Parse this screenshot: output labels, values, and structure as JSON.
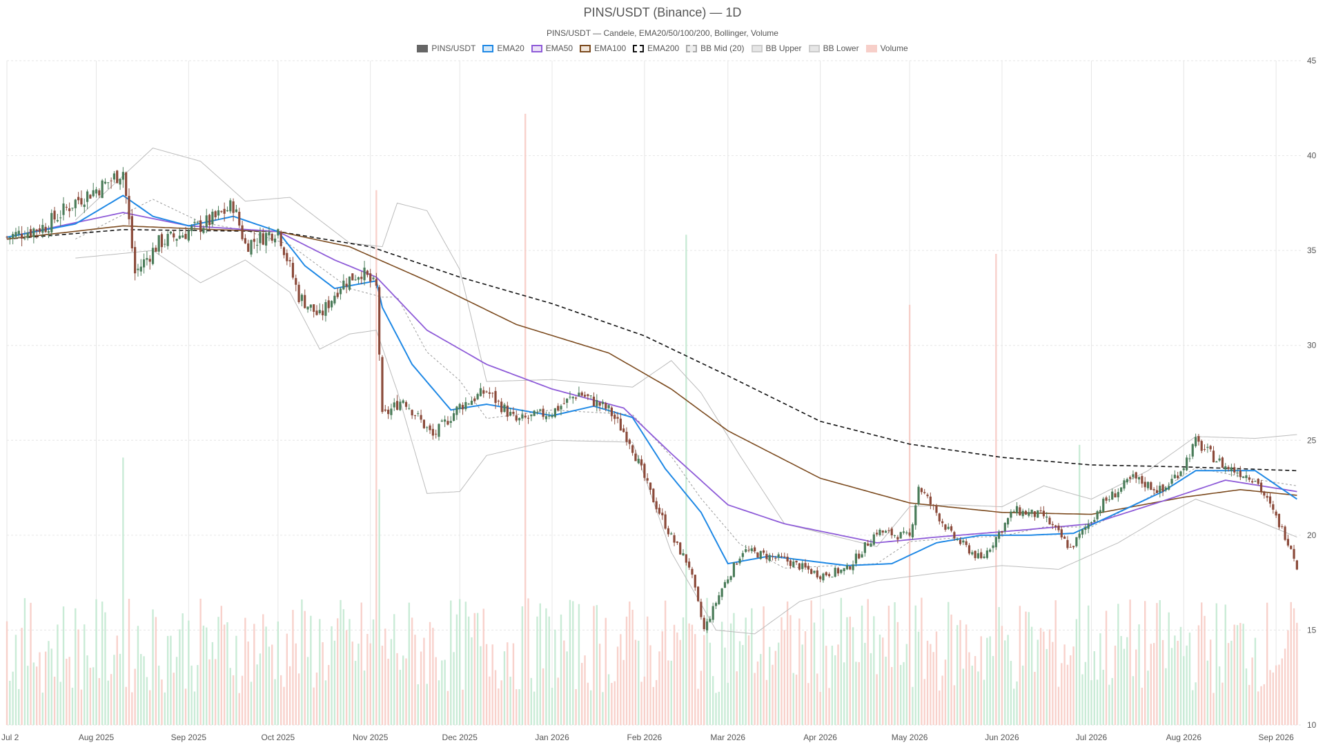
{
  "chart_data": {
    "type": "candlestick",
    "title": "PINS/USDT (Binance) — 1D",
    "subtitle": "PINS/USDT — Candele, EMA20/50/100/200, Bollinger, Volume",
    "x_range": [
      "2025-07-02",
      "2026-09-10"
    ],
    "y_range": [
      10,
      45
    ],
    "y_ticks": [
      10,
      15,
      20,
      25,
      30,
      35,
      40,
      45
    ],
    "x_ticks": [
      {
        "date": "2025-07-02",
        "label": "Jul 2"
      },
      {
        "date": "2025-08-01",
        "label": "Aug 2025"
      },
      {
        "date": "2025-09-01",
        "label": "Sep 2025"
      },
      {
        "date": "2025-10-01",
        "label": "Oct 2025"
      },
      {
        "date": "2025-11-01",
        "label": "Nov 2025"
      },
      {
        "date": "2025-12-01",
        "label": "Dec 2025"
      },
      {
        "date": "2026-01-01",
        "label": "Jan 2026"
      },
      {
        "date": "2026-02-01",
        "label": "Feb 2026"
      },
      {
        "date": "2026-03-01",
        "label": "Mar 2026"
      },
      {
        "date": "2026-04-01",
        "label": "Apr 2026"
      },
      {
        "date": "2026-05-01",
        "label": "May 2026"
      },
      {
        "date": "2026-06-01",
        "label": "Jun 2026"
      },
      {
        "date": "2026-07-01",
        "label": "Jul 2026"
      },
      {
        "date": "2026-08-01",
        "label": "Aug 2026"
      },
      {
        "date": "2026-09-01",
        "label": "Sep 2026"
      }
    ],
    "grid": true,
    "legend_position": "top-center",
    "legend": [
      {
        "name": "PINS/USDT",
        "fill": "#666666",
        "stroke": "#666666",
        "dashed": false
      },
      {
        "name": "EMA20",
        "fill": "#d6e9f8",
        "stroke": "#1e88e5",
        "dashed": false
      },
      {
        "name": "EMA50",
        "fill": "#ece1f7",
        "stroke": "#8e5bd8",
        "dashed": false
      },
      {
        "name": "EMA100",
        "fill": "#f2e6da",
        "stroke": "#7b4a1e",
        "dashed": false
      },
      {
        "name": "EMA200",
        "fill": "#ffffff",
        "stroke": "#111111",
        "dashed": true
      },
      {
        "name": "BB Mid (20)",
        "fill": "#eeeeee",
        "stroke": "#aaaaaa",
        "dashed": true
      },
      {
        "name": "BB Upper",
        "fill": "#e6e6e6",
        "stroke": "#cccccc",
        "dashed": false
      },
      {
        "name": "BB Lower",
        "fill": "#e6e6e6",
        "stroke": "#cccccc",
        "dashed": false
      },
      {
        "name": "Volume",
        "fill": "#f7cfc9",
        "stroke": "#f7cfc9",
        "dashed": false
      }
    ],
    "colors": {
      "up": "#4a7c59",
      "down": "#8b4a3a",
      "vol_up": "#bfe8cf",
      "vol_down": "#f7c9c2",
      "grid": "#e6e6e6"
    },
    "price_keypoints": [
      [
        "2025-07-02",
        35.7
      ],
      [
        "2025-07-15",
        36.3
      ],
      [
        "2025-07-25",
        37.6
      ],
      [
        "2025-08-04",
        38.5
      ],
      [
        "2025-08-10",
        39.2
      ],
      [
        "2025-08-14",
        33.8
      ],
      [
        "2025-08-22",
        35.4
      ],
      [
        "2025-09-01",
        36.0
      ],
      [
        "2025-09-10",
        36.7
      ],
      [
        "2025-09-16",
        37.4
      ],
      [
        "2025-09-20",
        35.3
      ],
      [
        "2025-10-01",
        36.1
      ],
      [
        "2025-10-08",
        32.6
      ],
      [
        "2025-10-15",
        31.5
      ],
      [
        "2025-10-22",
        33.2
      ],
      [
        "2025-10-29",
        33.9
      ],
      [
        "2025-11-03",
        33.0
      ],
      [
        "2025-11-05",
        26.2
      ],
      [
        "2025-11-12",
        27.2
      ],
      [
        "2025-11-22",
        25.2
      ],
      [
        "2025-12-01",
        26.8
      ],
      [
        "2025-12-10",
        27.6
      ],
      [
        "2025-12-20",
        26.0
      ],
      [
        "2026-01-01",
        26.5
      ],
      [
        "2026-01-10",
        27.5
      ],
      [
        "2026-01-20",
        26.6
      ],
      [
        "2026-01-27",
        25.0
      ],
      [
        "2026-02-03",
        22.2
      ],
      [
        "2026-02-10",
        19.9
      ],
      [
        "2026-02-16",
        18.4
      ],
      [
        "2026-02-21",
        15.0
      ],
      [
        "2026-02-27",
        17.2
      ],
      [
        "2026-03-06",
        19.2
      ],
      [
        "2026-03-20",
        18.7
      ],
      [
        "2026-04-01",
        17.9
      ],
      [
        "2026-04-10",
        18.2
      ],
      [
        "2026-04-20",
        20.2
      ],
      [
        "2026-05-01",
        19.9
      ],
      [
        "2026-05-04",
        22.6
      ],
      [
        "2026-05-15",
        20.0
      ],
      [
        "2026-05-25",
        18.7
      ],
      [
        "2026-06-05",
        21.3
      ],
      [
        "2026-06-15",
        21.0
      ],
      [
        "2026-06-24",
        19.3
      ],
      [
        "2026-07-05",
        21.7
      ],
      [
        "2026-07-15",
        23.0
      ],
      [
        "2026-07-25",
        22.3
      ],
      [
        "2026-08-01",
        23.7
      ],
      [
        "2026-08-05",
        24.9
      ],
      [
        "2026-08-15",
        23.6
      ],
      [
        "2026-08-25",
        23.0
      ],
      [
        "2026-09-02",
        20.6
      ],
      [
        "2026-09-06",
        19.4
      ],
      [
        "2026-09-08",
        18.4
      ]
    ],
    "ema20": [
      [
        "2025-07-02",
        35.7
      ],
      [
        "2025-07-25",
        36.4
      ],
      [
        "2025-08-10",
        37.9
      ],
      [
        "2025-08-20",
        36.8
      ],
      [
        "2025-09-01",
        36.3
      ],
      [
        "2025-09-16",
        36.8
      ],
      [
        "2025-10-01",
        36.0
      ],
      [
        "2025-10-10",
        34.2
      ],
      [
        "2025-10-20",
        33.0
      ],
      [
        "2025-11-03",
        33.4
      ],
      [
        "2025-11-05",
        32.0
      ],
      [
        "2025-11-15",
        29.0
      ],
      [
        "2025-11-28",
        26.6
      ],
      [
        "2025-12-10",
        26.9
      ],
      [
        "2026-01-01",
        26.3
      ],
      [
        "2026-01-15",
        26.8
      ],
      [
        "2026-01-28",
        26.2
      ],
      [
        "2026-02-08",
        23.5
      ],
      [
        "2026-02-20",
        21.2
      ],
      [
        "2026-03-01",
        18.5
      ],
      [
        "2026-03-15",
        18.9
      ],
      [
        "2026-04-10",
        18.4
      ],
      [
        "2026-04-25",
        18.5
      ],
      [
        "2026-05-10",
        19.6
      ],
      [
        "2026-05-25",
        20.0
      ],
      [
        "2026-06-10",
        20.0
      ],
      [
        "2026-06-25",
        20.1
      ],
      [
        "2026-07-10",
        21.2
      ],
      [
        "2026-07-25",
        22.3
      ],
      [
        "2026-08-05",
        23.4
      ],
      [
        "2026-08-25",
        23.4
      ],
      [
        "2026-09-08",
        21.9
      ]
    ],
    "ema50": [
      [
        "2025-07-02",
        35.7
      ],
      [
        "2025-08-10",
        37.0
      ],
      [
        "2025-09-01",
        36.3
      ],
      [
        "2025-10-01",
        36.0
      ],
      [
        "2025-10-20",
        34.5
      ],
      [
        "2025-11-03",
        33.6
      ],
      [
        "2025-11-20",
        30.8
      ],
      [
        "2025-12-10",
        29.0
      ],
      [
        "2026-01-01",
        27.7
      ],
      [
        "2026-01-25",
        26.7
      ],
      [
        "2026-02-10",
        24.3
      ],
      [
        "2026-03-01",
        21.6
      ],
      [
        "2026-03-20",
        20.6
      ],
      [
        "2026-04-20",
        19.6
      ],
      [
        "2026-05-10",
        19.9
      ],
      [
        "2026-06-10",
        20.3
      ],
      [
        "2026-07-01",
        20.6
      ],
      [
        "2026-07-25",
        21.8
      ],
      [
        "2026-08-15",
        22.9
      ],
      [
        "2026-09-08",
        22.3
      ]
    ],
    "ema100": [
      [
        "2025-07-02",
        35.6
      ],
      [
        "2025-08-10",
        36.3
      ],
      [
        "2025-09-10",
        36.1
      ],
      [
        "2025-10-01",
        36.0
      ],
      [
        "2025-10-25",
        35.2
      ],
      [
        "2025-11-20",
        33.4
      ],
      [
        "2025-12-20",
        31.1
      ],
      [
        "2026-01-20",
        29.6
      ],
      [
        "2026-02-10",
        27.7
      ],
      [
        "2026-03-01",
        25.5
      ],
      [
        "2026-04-01",
        23.0
      ],
      [
        "2026-05-01",
        21.7
      ],
      [
        "2026-06-01",
        21.2
      ],
      [
        "2026-07-01",
        21.1
      ],
      [
        "2026-08-01",
        22.0
      ],
      [
        "2026-08-20",
        22.4
      ],
      [
        "2026-09-08",
        22.1
      ]
    ],
    "ema200": [
      [
        "2025-07-02",
        35.6
      ],
      [
        "2025-08-10",
        36.1
      ],
      [
        "2025-10-01",
        36.0
      ],
      [
        "2025-11-01",
        35.2
      ],
      [
        "2025-12-01",
        33.6
      ],
      [
        "2026-01-01",
        32.2
      ],
      [
        "2026-02-01",
        30.5
      ],
      [
        "2026-03-01",
        28.4
      ],
      [
        "2026-04-01",
        26.0
      ],
      [
        "2026-05-01",
        24.8
      ],
      [
        "2026-06-01",
        24.1
      ],
      [
        "2026-07-01",
        23.7
      ],
      [
        "2026-08-01",
        23.6
      ],
      [
        "2026-09-08",
        23.4
      ]
    ],
    "bb_upper": [
      [
        "2025-07-25",
        36.6
      ],
      [
        "2025-08-20",
        40.4
      ],
      [
        "2025-09-05",
        39.7
      ],
      [
        "2025-09-20",
        37.6
      ],
      [
        "2025-10-05",
        37.8
      ],
      [
        "2025-10-25",
        35.4
      ],
      [
        "2025-11-05",
        35.2
      ],
      [
        "2025-11-10",
        37.5
      ],
      [
        "2025-11-20",
        37.1
      ],
      [
        "2025-12-01",
        34.0
      ],
      [
        "2025-12-10",
        28.1
      ],
      [
        "2026-01-01",
        28.2
      ],
      [
        "2026-01-28",
        27.8
      ],
      [
        "2026-02-10",
        29.2
      ],
      [
        "2026-02-20",
        27.5
      ],
      [
        "2026-03-05",
        24.2
      ],
      [
        "2026-03-20",
        20.6
      ],
      [
        "2026-04-20",
        19.4
      ],
      [
        "2026-05-01",
        21.5
      ],
      [
        "2026-05-15",
        21.6
      ],
      [
        "2026-06-01",
        21.5
      ],
      [
        "2026-06-15",
        22.6
      ],
      [
        "2026-07-01",
        21.9
      ],
      [
        "2026-07-20",
        23.4
      ],
      [
        "2026-08-05",
        25.2
      ],
      [
        "2026-08-25",
        25.1
      ],
      [
        "2026-09-08",
        25.3
      ]
    ],
    "bb_lower": [
      [
        "2025-07-25",
        34.6
      ],
      [
        "2025-08-20",
        35.0
      ],
      [
        "2025-09-05",
        33.3
      ],
      [
        "2025-09-20",
        34.5
      ],
      [
        "2025-10-05",
        32.8
      ],
      [
        "2025-10-15",
        29.8
      ],
      [
        "2025-10-25",
        30.6
      ],
      [
        "2025-11-03",
        30.8
      ],
      [
        "2025-11-10",
        27.6
      ],
      [
        "2025-11-20",
        22.2
      ],
      [
        "2025-12-01",
        22.3
      ],
      [
        "2025-12-10",
        24.2
      ],
      [
        "2026-01-01",
        25.0
      ],
      [
        "2026-01-28",
        24.9
      ],
      [
        "2026-02-10",
        19.1
      ],
      [
        "2026-02-25",
        15.0
      ],
      [
        "2026-03-10",
        14.8
      ],
      [
        "2026-03-25",
        16.5
      ],
      [
        "2026-04-20",
        17.6
      ],
      [
        "2026-05-10",
        18.0
      ],
      [
        "2026-06-01",
        18.4
      ],
      [
        "2026-06-20",
        18.2
      ],
      [
        "2026-07-10",
        19.6
      ],
      [
        "2026-07-25",
        21.0
      ],
      [
        "2026-08-05",
        21.9
      ],
      [
        "2026-08-25",
        20.8
      ],
      [
        "2026-09-08",
        19.9
      ]
    ],
    "volume_spikes": [
      {
        "date": "2025-08-10",
        "height": 0.42,
        "dir": "up"
      },
      {
        "date": "2025-11-03",
        "height": 0.84,
        "dir": "down"
      },
      {
        "date": "2025-11-04",
        "height": 0.37,
        "dir": "up"
      },
      {
        "date": "2025-12-23",
        "height": 0.96,
        "dir": "down"
      },
      {
        "date": "2026-02-15",
        "height": 0.77,
        "dir": "up"
      },
      {
        "date": "2026-05-01",
        "height": 0.66,
        "dir": "down"
      },
      {
        "date": "2026-05-30",
        "height": 0.74,
        "dir": "down"
      },
      {
        "date": "2026-06-27",
        "height": 0.44,
        "dir": "up"
      }
    ]
  }
}
